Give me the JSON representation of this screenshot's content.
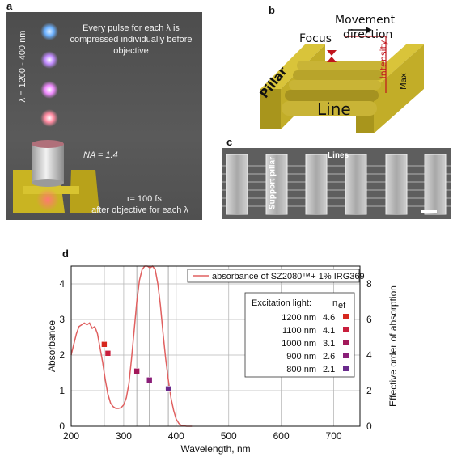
{
  "panels": {
    "a": {
      "label": "a",
      "lambda_range": "λ = 1200 - 400 nm",
      "top_text": "Every pulse for each λ is compressed individually before objective",
      "na_label": "NA = 1.4",
      "tau_line1": "τ= 100 fs",
      "tau_line2": "after objective for each λ"
    },
    "b": {
      "label": "b",
      "focus": "Focus",
      "movement": "Movement",
      "direction": "direction",
      "pillar": "Pillar",
      "line": "Line",
      "intensity": "Intensity",
      "max": "Max"
    },
    "c": {
      "label": "c",
      "lines": "Lines",
      "support_pillar": "Support pillar"
    },
    "d": {
      "label": "d"
    }
  },
  "chart_data": {
    "type": "line",
    "xlabel": "Wavelength, nm",
    "ylabel": "Absorbance",
    "y2label": "Effective order of absorption",
    "xlim": [
      200,
      750
    ],
    "ylim": [
      0,
      4.5
    ],
    "y2lim": [
      0,
      9
    ],
    "xticks": [
      200,
      300,
      400,
      500,
      600,
      700
    ],
    "yticks": [
      0,
      1,
      2,
      3,
      4
    ],
    "y2ticks": [
      0,
      2,
      4,
      6,
      8
    ],
    "grid": true,
    "series_name": "absorbance of SZ2080™+ 1% IRG369",
    "absorbance": {
      "x": [
        200,
        205,
        210,
        215,
        220,
        225,
        230,
        235,
        240,
        245,
        250,
        255,
        260,
        265,
        270,
        275,
        280,
        285,
        290,
        295,
        300,
        305,
        310,
        315,
        320,
        325,
        330,
        335,
        340,
        345,
        350,
        355,
        360,
        365,
        370,
        375,
        380,
        385,
        390,
        395,
        400,
        405,
        410,
        420,
        430
      ],
      "y": [
        2.0,
        2.3,
        2.6,
        2.8,
        2.85,
        2.9,
        2.85,
        2.9,
        2.75,
        2.8,
        2.6,
        2.2,
        1.8,
        1.3,
        0.9,
        0.65,
        0.55,
        0.5,
        0.5,
        0.52,
        0.6,
        0.8,
        1.2,
        1.9,
        2.7,
        3.5,
        4.1,
        4.4,
        4.5,
        4.5,
        4.45,
        4.5,
        4.4,
        4.0,
        3.4,
        2.6,
        1.9,
        1.3,
        0.8,
        0.45,
        0.2,
        0.08,
        0.02,
        0.0,
        0.0
      ]
    },
    "vertical_lines": [
      263,
      270,
      325,
      349,
      385
    ],
    "legend_title": "Excitation light:",
    "legend_header": "n",
    "legend_header_sub": "ef",
    "excitation": [
      {
        "wavelength": "1200 nm",
        "neff": "4.6",
        "color": "#d6281e",
        "x": 263,
        "y2": 4.6
      },
      {
        "wavelength": "1100 nm",
        "neff": "4.1",
        "color": "#c81e3c",
        "x": 270,
        "y2": 4.1
      },
      {
        "wavelength": "1000 nm",
        "neff": "3.1",
        "color": "#a3185a",
        "x": 325,
        "y2": 3.1
      },
      {
        "wavelength": "900 nm",
        "neff": "2.6",
        "color": "#8a1e78",
        "x": 349,
        "y2": 2.6
      },
      {
        "wavelength": "800 nm",
        "neff": "2.1",
        "color": "#6a2a8c",
        "x": 385,
        "y2": 2.1
      }
    ],
    "colors": {
      "curve": "#e06060",
      "grid": "#b8b8b8"
    }
  }
}
